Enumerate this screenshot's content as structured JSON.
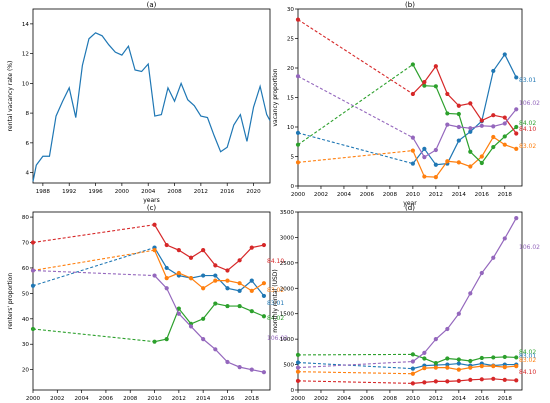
{
  "chart_data": [
    {
      "type": "line",
      "title": "(a)",
      "xlabel": "years",
      "ylabel": "rental vacancy rate (%)",
      "xlim": [
        1986.5,
        2022.5
      ],
      "ylim": [
        3.3,
        15
      ],
      "xticks": [
        1988,
        1992,
        1996,
        2000,
        2004,
        2008,
        2012,
        2016,
        2020
      ],
      "yticks": [
        4,
        6,
        8,
        10,
        12,
        14
      ],
      "series": [
        {
          "color": "#1f77b4",
          "x": [
            1986.5,
            1987,
            1988,
            1989,
            1990,
            1991,
            1992,
            1993,
            1994,
            1995,
            1996,
            1997,
            1998,
            1999,
            2000,
            2001,
            2002,
            2003,
            2004,
            2005,
            2006,
            2007,
            2008,
            2009,
            2010,
            2011,
            2012,
            2013,
            2014,
            2015,
            2016,
            2017,
            2018,
            2019,
            2020,
            2021,
            2022,
            2022.5
          ],
          "y": [
            3.4,
            4.5,
            5.1,
            5.1,
            7.8,
            8.8,
            9.7,
            7.7,
            11.2,
            13.0,
            13.4,
            13.2,
            12.6,
            12.1,
            11.9,
            12.5,
            10.9,
            10.8,
            11.3,
            7.8,
            7.9,
            9.7,
            8.8,
            10.0,
            8.9,
            8.5,
            7.8,
            7.7,
            6.5,
            5.4,
            5.7,
            7.2,
            7.9,
            6.1,
            8.4,
            9.8,
            7.9,
            7.5
          ]
        }
      ]
    },
    {
      "type": "line",
      "title": "(b)",
      "xlabel": "year",
      "ylabel": "vacancy proportion",
      "xlim": [
        2000,
        2019.5
      ],
      "ylim": [
        0,
        30
      ],
      "xticks": [
        2000,
        2002,
        2004,
        2006,
        2008,
        2010,
        2012,
        2014,
        2016,
        2018
      ],
      "yticks": [
        0,
        5,
        10,
        15,
        20,
        25,
        30
      ],
      "series": [
        {
          "name": "83.01",
          "color": "#1f77b4",
          "x": [
            2000,
            2010,
            2011,
            2012,
            2013,
            2014,
            2015,
            2016,
            2017,
            2018,
            2019
          ],
          "y": [
            9.0,
            3.8,
            6.3,
            3.6,
            3.8,
            7.7,
            9.2,
            11.0,
            19.5,
            22.3,
            18.4
          ]
        },
        {
          "name": "83.02",
          "color": "#ff7f0e",
          "x": [
            2000,
            2010,
            2011,
            2012,
            2013,
            2014,
            2015,
            2016,
            2017,
            2018,
            2019
          ],
          "y": [
            4.0,
            6.0,
            1.6,
            1.5,
            4.2,
            4.0,
            3.3,
            5.0,
            8.3,
            7.0,
            6.3
          ]
        },
        {
          "name": "84.02",
          "color": "#2ca02c",
          "x": [
            2000,
            2010,
            2011,
            2012,
            2013,
            2014,
            2015,
            2016,
            2017,
            2018,
            2019
          ],
          "y": [
            7.0,
            20.6,
            17.0,
            16.9,
            12.3,
            12.2,
            5.8,
            3.9,
            6.6,
            8.4,
            10.0
          ]
        },
        {
          "name": "84.10",
          "color": "#d62728",
          "x": [
            2000,
            2010,
            2011,
            2012,
            2013,
            2014,
            2015,
            2016,
            2017,
            2018,
            2019
          ],
          "y": [
            28.2,
            15.6,
            17.6,
            20.3,
            15.6,
            13.6,
            14.0,
            11.1,
            12.0,
            11.6,
            8.9
          ]
        },
        {
          "name": "106.02",
          "color": "#9467bd",
          "x": [
            2000,
            2010,
            2011,
            2012,
            2013,
            2014,
            2015,
            2016,
            2017,
            2018,
            2019
          ],
          "y": [
            18.6,
            8.2,
            4.9,
            6.1,
            10.4,
            10.0,
            9.8,
            10.2,
            10.1,
            10.6,
            13.0
          ]
        }
      ],
      "labels": [
        "83.01",
        "106.02",
        "84.02",
        "84.10",
        "83.02"
      ]
    },
    {
      "type": "line",
      "title": "(c)",
      "xlabel": "year",
      "ylabel": "renters' proportion",
      "xlim": [
        2000,
        2019.5
      ],
      "ylim": [
        12,
        82
      ],
      "xticks": [
        2000,
        2002,
        2004,
        2006,
        2008,
        2010,
        2012,
        2014,
        2016,
        2018
      ],
      "yticks": [
        20,
        30,
        40,
        50,
        60,
        70,
        80
      ],
      "series": [
        {
          "name": "83.01",
          "color": "#1f77b4",
          "x": [
            2000,
            2010,
            2011,
            2012,
            2013,
            2014,
            2015,
            2016,
            2017,
            2018,
            2019
          ],
          "y": [
            53,
            68,
            60,
            57,
            56,
            57,
            57,
            52,
            51,
            55,
            49
          ]
        },
        {
          "name": "83.02",
          "color": "#ff7f0e",
          "x": [
            2000,
            2010,
            2011,
            2012,
            2013,
            2014,
            2015,
            2016,
            2017,
            2018,
            2019
          ],
          "y": [
            59,
            67,
            56,
            58,
            56,
            52,
            55,
            55,
            54,
            51,
            54
          ]
        },
        {
          "name": "84.02",
          "color": "#2ca02c",
          "x": [
            2000,
            2010,
            2011,
            2012,
            2013,
            2014,
            2015,
            2016,
            2017,
            2018,
            2019
          ],
          "y": [
            36,
            31,
            32,
            44,
            38,
            40,
            46,
            45,
            45,
            43,
            41
          ]
        },
        {
          "name": "84.10",
          "color": "#d62728",
          "x": [
            2000,
            2010,
            2011,
            2012,
            2013,
            2014,
            2015,
            2016,
            2017,
            2018,
            2019
          ],
          "y": [
            70,
            77,
            69,
            67,
            64,
            67,
            61,
            59,
            63,
            68,
            69
          ]
        },
        {
          "name": "106.02",
          "color": "#9467bd",
          "x": [
            2000,
            2010,
            2011,
            2012,
            2013,
            2014,
            2015,
            2016,
            2017,
            2018,
            2019
          ],
          "y": [
            59,
            57,
            52,
            42,
            37,
            32,
            28,
            23,
            21,
            20,
            19
          ]
        }
      ],
      "labels": [
        "84.10",
        "83.02",
        "83.01",
        "84.02",
        "106.02"
      ]
    },
    {
      "type": "line",
      "title": "(d)",
      "xlabel": "year",
      "ylabel": "monthly rental (USD)",
      "xlim": [
        2000,
        2019.5
      ],
      "ylim": [
        0,
        3500
      ],
      "xticks": [
        2000,
        2002,
        2004,
        2006,
        2008,
        2010,
        2012,
        2014,
        2016,
        2018
      ],
      "yticks": [
        0,
        500,
        1000,
        1500,
        2000,
        2500,
        3000,
        3500
      ],
      "series": [
        {
          "name": "83.01",
          "color": "#1f77b4",
          "x": [
            2000,
            2010,
            2011,
            2012,
            2013,
            2014,
            2015,
            2016,
            2017,
            2018,
            2019
          ],
          "y": [
            540,
            420,
            480,
            490,
            500,
            520,
            480,
            520,
            480,
            500,
            500
          ]
        },
        {
          "name": "83.02",
          "color": "#ff7f0e",
          "x": [
            2000,
            2010,
            2011,
            2012,
            2013,
            2014,
            2015,
            2016,
            2017,
            2018,
            2019
          ],
          "y": [
            360,
            320,
            430,
            440,
            440,
            400,
            440,
            470,
            470,
            450,
            470
          ]
        },
        {
          "name": "84.02",
          "color": "#2ca02c",
          "x": [
            2000,
            2010,
            2011,
            2012,
            2013,
            2014,
            2015,
            2016,
            2017,
            2018,
            2019
          ],
          "y": [
            690,
            700,
            620,
            530,
            620,
            600,
            570,
            630,
            640,
            650,
            640
          ]
        },
        {
          "name": "84.10",
          "color": "#d62728",
          "x": [
            2000,
            2010,
            2011,
            2012,
            2013,
            2014,
            2015,
            2016,
            2017,
            2018,
            2019
          ],
          "y": [
            180,
            130,
            150,
            170,
            170,
            180,
            200,
            210,
            220,
            200,
            190
          ]
        },
        {
          "name": "106.02",
          "color": "#9467bd",
          "x": [
            2000,
            2010,
            2011,
            2012,
            2013,
            2014,
            2015,
            2016,
            2017,
            2018,
            2019
          ],
          "y": [
            440,
            560,
            730,
            1000,
            1200,
            1500,
            1900,
            2300,
            2600,
            2980,
            3380
          ]
        }
      ],
      "labels": [
        "106.02",
        "84.02",
        "83.01",
        "83.02",
        "84.10"
      ]
    }
  ]
}
